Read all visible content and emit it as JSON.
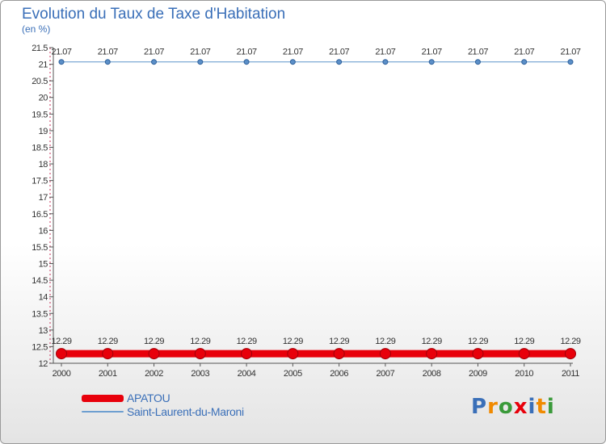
{
  "chart_data": {
    "type": "line",
    "title": "Evolution du Taux de Taxe d'Habitation",
    "ylabel": "(en %)",
    "xlabel": "",
    "categories": [
      "2000",
      "2001",
      "2002",
      "2003",
      "2004",
      "2005",
      "2006",
      "2007",
      "2008",
      "2009",
      "2010",
      "2011"
    ],
    "ylim": [
      12,
      21.5
    ],
    "yticks": [
      "12",
      "12.5",
      "13",
      "13.5",
      "14",
      "14.5",
      "15",
      "15.5",
      "16",
      "16.5",
      "17",
      "17.5",
      "18",
      "18.5",
      "19",
      "19.5",
      "20",
      "20.5",
      "21",
      "21.5"
    ],
    "series": [
      {
        "name": "APATOU",
        "color": "#e8000b",
        "values": [
          12.29,
          12.29,
          12.29,
          12.29,
          12.29,
          12.29,
          12.29,
          12.29,
          12.29,
          12.29,
          12.29,
          12.29
        ],
        "labels": [
          "12.29",
          "12.29",
          "12.29",
          "12.29",
          "12.29",
          "12.29",
          "12.29",
          "12.29",
          "12.29",
          "12.29",
          "12.29",
          "12.29"
        ]
      },
      {
        "name": "Saint-Laurent-du-Maroni",
        "color": "#6e9fd0",
        "values": [
          21.07,
          21.07,
          21.07,
          21.07,
          21.07,
          21.07,
          21.07,
          21.07,
          21.07,
          21.07,
          21.07,
          21.07
        ],
        "labels": [
          "21.07",
          "21.07",
          "21.07",
          "21.07",
          "21.07",
          "21.07",
          "21.07",
          "21.07",
          "21.07",
          "21.07",
          "21.07",
          "21.07"
        ]
      }
    ],
    "legend": {
      "position": "bottom-left"
    }
  },
  "brand": {
    "logo_letters": [
      "P",
      "r",
      "o",
      "x",
      "i",
      "t",
      "i"
    ],
    "logo_colors": [
      "#3a6fb8",
      "#f08a00",
      "#3a9a3a",
      "#e8000b",
      "#3a6fb8",
      "#f08a00",
      "#3a9a3a"
    ]
  }
}
